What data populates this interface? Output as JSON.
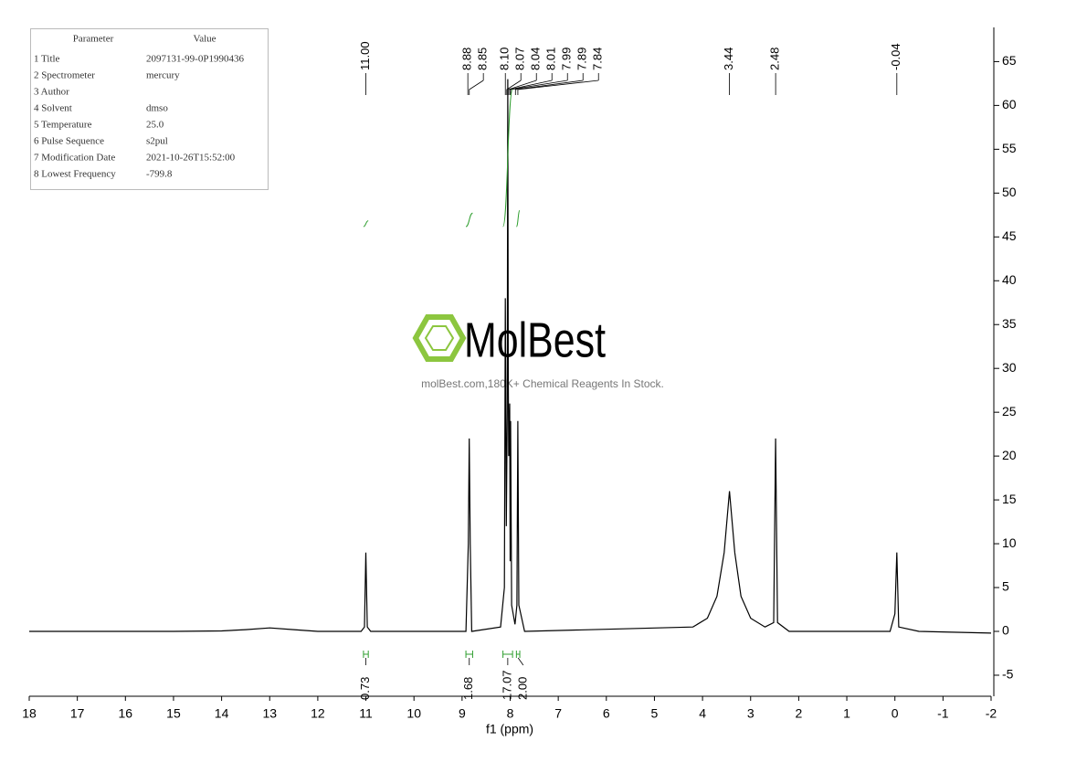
{
  "chart_data": {
    "type": "line",
    "color": "#000000",
    "integral_color": "#2e9e2e",
    "x_label": "f1 (ppm)",
    "xlim": [
      18,
      -2
    ],
    "xticks": [
      18,
      17,
      16,
      15,
      14,
      13,
      12,
      11,
      10,
      9,
      8,
      7,
      6,
      5,
      4,
      3,
      2,
      1,
      0,
      -1,
      -2
    ],
    "ylim": [
      -7.4,
      68.9
    ],
    "yticks": [
      -5,
      0,
      5,
      10,
      15,
      20,
      25,
      30,
      35,
      40,
      45,
      50,
      55,
      60,
      65
    ],
    "x": [
      18,
      15,
      14,
      13.5,
      13,
      12.5,
      12,
      11.1,
      11.03,
      11.0,
      10.97,
      10.9,
      8.92,
      8.87,
      8.85,
      8.83,
      8.8,
      8.2,
      8.12,
      8.1,
      8.08,
      8.06,
      8.05,
      8.04,
      8.03,
      8.01,
      8.0,
      7.99,
      7.97,
      7.9,
      7.86,
      7.84,
      7.82,
      7.7,
      4.2,
      3.9,
      3.7,
      3.55,
      3.44,
      3.33,
      3.2,
      3.0,
      2.7,
      2.52,
      2.48,
      2.44,
      2.2,
      0.1,
      0.0,
      -0.04,
      -0.08,
      -0.5,
      -2
    ],
    "values": [
      0,
      0,
      0.05,
      0.2,
      0.4,
      0.2,
      0,
      0,
      0.5,
      9,
      0.5,
      0,
      0,
      10,
      22,
      10,
      0,
      0.5,
      5,
      38,
      12,
      25,
      63,
      30,
      20,
      26,
      8,
      24,
      3,
      0.8,
      3,
      24,
      3,
      0,
      0.5,
      1.5,
      4,
      9,
      16,
      9,
      4,
      1.5,
      0.5,
      1,
      22,
      1,
      0,
      0,
      2,
      9,
      0.5,
      0,
      -0.2
    ],
    "peaks": [
      {
        "value": 11,
        "label": "11.00"
      },
      8.88,
      8.85,
      {
        "value": 8.1,
        "label": "8.10"
      },
      8.07,
      8.04,
      8.01,
      7.99,
      7.89,
      7.84,
      3.44,
      2.48,
      -0.04
    ],
    "integrals": [
      {
        "range": [
          11.05,
          10.95
        ],
        "value": 0.73
      },
      {
        "range": [
          8.92,
          8.78
        ],
        "value": 1.68
      },
      {
        "range": [
          8.15,
          7.95
        ],
        "value": 17.07
      },
      {
        "range": [
          7.87,
          7.8
        ],
        "value": 2,
        "value_label": "2.00"
      }
    ],
    "parameters": {
      "header": [
        "Parameter",
        "Value"
      ],
      "rows": [
        [
          "1 Title",
          "2097131-99-0P1990436"
        ],
        [
          "2 Spectrometer",
          "mercury"
        ],
        [
          "3 Author"
        ],
        [
          "4 Solvent",
          "dmso"
        ],
        [
          "5 Temperature",
          "25.0"
        ],
        [
          "6 Pulse Sequence",
          "s2pul"
        ],
        [
          "7 Modification Date",
          "2021-10-26T15:52:00"
        ],
        [
          "8 Lowest Frequency",
          "-799.8"
        ]
      ]
    },
    "watermark": {
      "brand": "MolBest",
      "tagline": "molBest.com,180K+ Chemical Reagents In Stock."
    }
  }
}
